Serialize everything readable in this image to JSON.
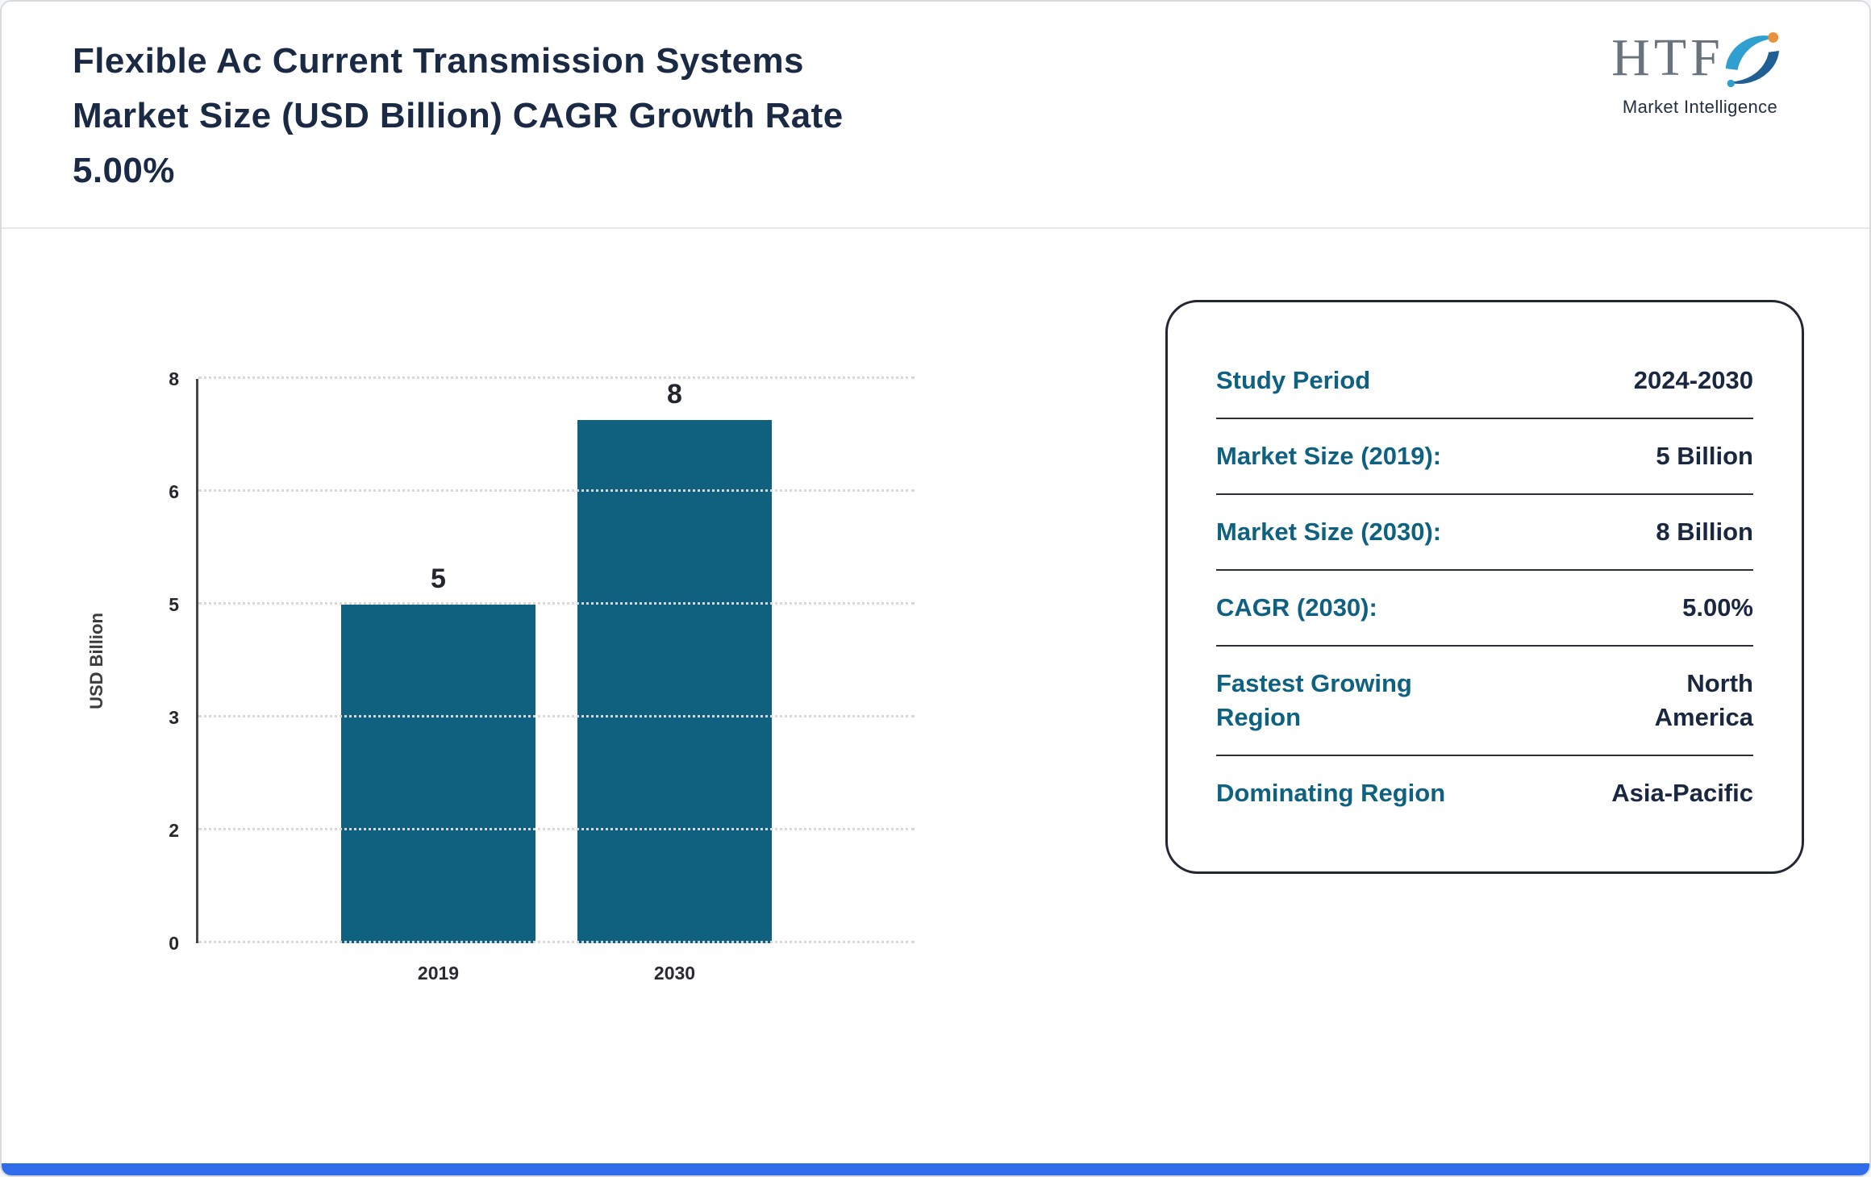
{
  "header": {
    "title_lines": [
      "Flexible Ac Current Transmission Systems",
      "Market Size (USD Billion) CAGR Growth Rate",
      "5.00%"
    ]
  },
  "logo": {
    "text": "HTF",
    "subtext": "Market Intelligence"
  },
  "chart_data": {
    "type": "bar",
    "title": "Flexible Ac Current Transmission Systems Market Size (USD Billion) CAGR Growth Rate 5.00%",
    "categories": [
      "2019",
      "2030"
    ],
    "values": [
      5,
      8
    ],
    "bar_labels": [
      "5",
      "8"
    ],
    "xlabel": "",
    "ylabel": "USD Billion",
    "yticks": [
      0,
      2,
      3,
      5,
      6,
      8
    ],
    "ylim": [
      0,
      8
    ],
    "grid": true,
    "legend": false
  },
  "summary_card": {
    "rows": [
      {
        "label": "Study Period",
        "value": "2024-2030"
      },
      {
        "label": "Market Size (2019):",
        "value": "5 Billion"
      },
      {
        "label": "Market Size (2030):",
        "value": "8 Billion"
      },
      {
        "label": "CAGR (2030):",
        "value": "5.00%"
      },
      {
        "label": "Fastest Growing Region",
        "value": "North America"
      },
      {
        "label": "Dominating Region",
        "value": "Asia-Pacific"
      }
    ]
  },
  "colors": {
    "bar": "#0f617f",
    "label_teal": "#0e6180",
    "value_navy": "#1a2740",
    "title_navy": "#1b2a44",
    "footer_blue": "#2e6cec"
  }
}
